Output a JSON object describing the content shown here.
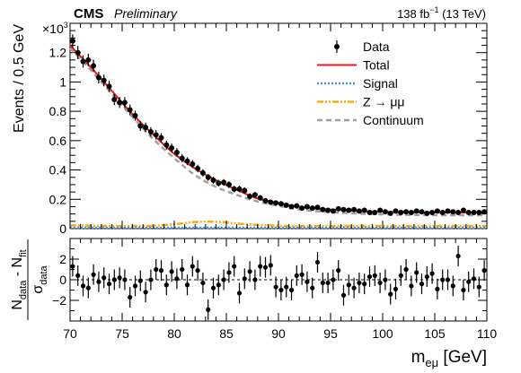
{
  "header": {
    "experiment": "CMS",
    "status": "Preliminary",
    "lumi": "138 fb",
    "lumi_exp": "−1",
    "energy": " (13 TeV)"
  },
  "chart_data": {
    "type": "scatter",
    "xlabel_main": "m",
    "xlabel_sub": "eμ",
    "xlabel_unit": " [GeV]",
    "x_ticks": [
      70,
      75,
      80,
      85,
      90,
      95,
      100,
      105,
      110
    ],
    "xlim": [
      70,
      110
    ],
    "top": {
      "ylabel": "Events / 0.5 GeV",
      "ylim": [
        0,
        1400
      ],
      "y_scale_label": "×10",
      "y_scale_exp": "3",
      "y_ticks": [
        0,
        200,
        400,
        600,
        800,
        1000,
        1200
      ],
      "y_tick_labels": [
        "0",
        "0.2",
        "0.4",
        "0.6",
        "0.8",
        "1",
        "1.2"
      ],
      "legend": {
        "placement": "top-right",
        "entries": [
          {
            "label": "Data",
            "kind": "marker"
          },
          {
            "label": "Total",
            "kind": "line",
            "color": "#e41a1c"
          },
          {
            "label": "Signal",
            "kind": "dotted",
            "color": "#3f90da"
          },
          {
            "label": "Z → μμ",
            "kind": "dashdot",
            "color": "#ffa90e"
          },
          {
            "label": "Continuum",
            "kind": "dashed",
            "color": "#a0a0a0"
          }
        ]
      },
      "series": [
        {
          "name": "Data",
          "x": [
            70.25,
            70.75,
            71.25,
            71.75,
            72.25,
            72.75,
            73.25,
            73.75,
            74.25,
            74.75,
            75.25,
            75.75,
            76.25,
            76.75,
            77.25,
            77.75,
            78.25,
            78.75,
            79.25,
            79.75,
            80.25,
            80.75,
            81.25,
            81.75,
            82.25,
            82.75,
            83.25,
            83.75,
            84.25,
            84.75,
            85.25,
            85.75,
            86.25,
            86.75,
            87.25,
            87.75,
            88.25,
            88.75,
            89.25,
            89.75,
            90.25,
            90.75,
            91.25,
            91.75,
            92.25,
            92.75,
            93.25,
            93.75,
            94.25,
            94.75,
            95.25,
            95.75,
            96.25,
            96.75,
            97.25,
            97.75,
            98.25,
            98.75,
            99.25,
            99.75,
            100.25,
            100.75,
            101.25,
            101.75,
            102.25,
            102.75,
            103.25,
            103.75,
            104.25,
            104.75,
            105.25,
            105.75,
            106.25,
            106.75,
            107.25,
            107.75,
            108.25,
            108.75,
            109.25,
            109.75
          ],
          "y": [
            1280,
            1200,
            1140,
            1150,
            1110,
            1030,
            1010,
            970,
            880,
            860,
            860,
            810,
            770,
            700,
            690,
            660,
            640,
            620,
            570,
            550,
            520,
            480,
            460,
            440,
            410,
            380,
            350,
            330,
            310,
            315,
            300,
            270,
            270,
            260,
            220,
            230,
            210,
            190,
            180,
            175,
            170,
            160,
            150,
            155,
            140,
            150,
            140,
            145,
            130,
            125,
            120,
            135,
            130,
            125,
            130,
            120,
            125,
            110,
            110,
            125,
            115,
            105,
            120,
            110,
            115,
            110,
            120,
            115,
            105,
            110,
            120,
            110,
            120,
            115,
            110,
            125,
            110,
            110,
            110,
            115
          ],
          "err": [
            45,
            45,
            42,
            43,
            42,
            40,
            40,
            39,
            37,
            37,
            37,
            36,
            35,
            33,
            33,
            32,
            32,
            31,
            30,
            30,
            29,
            28,
            27,
            27,
            26,
            25,
            24,
            24,
            23,
            23,
            23,
            22,
            22,
            21,
            20,
            20,
            19,
            18,
            18,
            18,
            18,
            17,
            16,
            17,
            16,
            16,
            16,
            16,
            15,
            15,
            15,
            16,
            15,
            15,
            15,
            15,
            15,
            14,
            14,
            15,
            14,
            14,
            15,
            14,
            14,
            14,
            15,
            14,
            14,
            14,
            15,
            14,
            15,
            14,
            14,
            15,
            14,
            14,
            14,
            14
          ]
        },
        {
          "name": "Total",
          "x": [
            70,
            72,
            74,
            76,
            78,
            80,
            82,
            84,
            86,
            88,
            90,
            92,
            95,
            100,
            105,
            110
          ],
          "y": [
            1250,
            1100,
            940,
            780,
            640,
            510,
            410,
            330,
            265,
            205,
            175,
            150,
            130,
            115,
            110,
            110
          ]
        },
        {
          "name": "Signal",
          "x": [
            70,
            80,
            90,
            100,
            110
          ],
          "y": [
            6,
            6,
            6,
            6,
            6
          ]
        },
        {
          "name": "Z → μμ",
          "x": [
            70,
            72,
            74,
            76,
            78,
            80,
            81,
            82,
            83,
            84,
            85,
            86,
            88,
            90,
            92,
            95,
            100,
            105,
            110
          ],
          "y": [
            22,
            20,
            18,
            18,
            20,
            30,
            38,
            45,
            48,
            47,
            42,
            35,
            25,
            20,
            18,
            18,
            18,
            18,
            18
          ]
        },
        {
          "name": "Continuum",
          "x": [
            70,
            72,
            74,
            76,
            78,
            80,
            82,
            84,
            86,
            88,
            90,
            92,
            95,
            100,
            105,
            110
          ],
          "y": [
            1230,
            1080,
            920,
            760,
            610,
            480,
            365,
            285,
            230,
            185,
            155,
            132,
            112,
            97,
            92,
            92
          ]
        }
      ]
    },
    "bottom": {
      "ylabel_num_1": "N",
      "ylabel_num_1_sub": "data",
      "ylabel_num_2": " - N",
      "ylabel_num_2_sub": "fit",
      "ylabel_den": "σ",
      "ylabel_den_sub": "data",
      "ylim": [
        -4,
        4
      ],
      "y_ticks": [
        -2,
        0,
        2
      ],
      "pulls": [
        1.3,
        0.4,
        -0.6,
        -0.8,
        0.5,
        -0.2,
        0.2,
        -0.4,
        0.0,
        0.2,
        0.0,
        -1.7,
        -0.6,
        -0.1,
        -1.2,
        0.0,
        1.0,
        0.9,
        -0.5,
        0.8,
        0.1,
        1.0,
        -0.5,
        1.3,
        0.9,
        -0.3,
        -2.9,
        -0.8,
        -0.5,
        0.0,
        0.7,
        1.3,
        -1.3,
        0.1,
        0.8,
        0.0,
        1.3,
        1.2,
        1.4,
        -0.7,
        -1.0,
        -0.7,
        -1.0,
        0.4,
        0.5,
        -0.2,
        -0.8,
        1.7,
        -0.3,
        -0.3,
        0.0,
        0.9,
        -1.5,
        -0.5,
        -0.8,
        -0.3,
        -0.4,
        0.3,
        0.4,
        -0.3,
        0.0,
        -1.4,
        -0.9,
        0.4,
        1.0,
        -0.6,
        0.7,
        -0.4,
        0.3,
        0.6,
        -0.9,
        0.0,
        0.0,
        -0.6,
        2.3,
        -1.0,
        -0.2,
        0.1,
        -0.7,
        0.9
      ]
    }
  }
}
